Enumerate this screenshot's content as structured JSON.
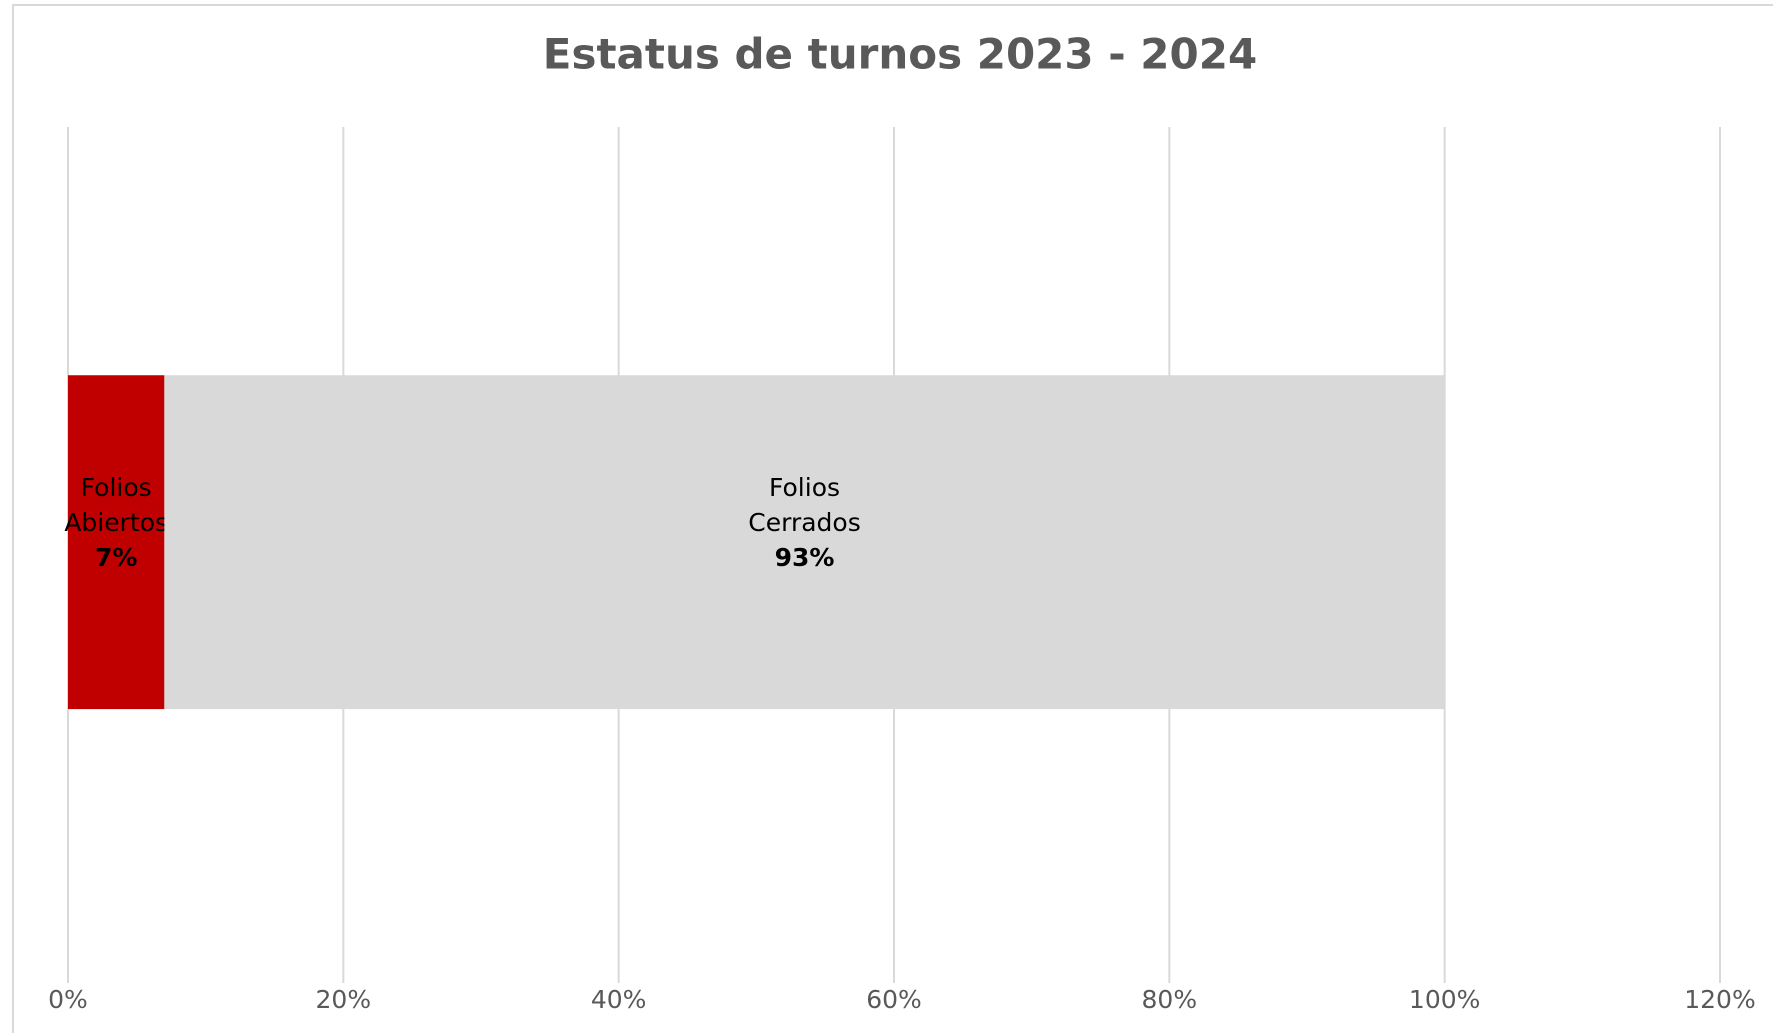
{
  "chart_data": {
    "type": "bar",
    "orientation": "horizontal",
    "stacked": true,
    "title": "Estatus de turnos 2023 - 2024",
    "categories": [
      null
    ],
    "series": [
      {
        "name": "Folios Abiertos",
        "color": "#c00000",
        "values": [
          7
        ],
        "value_labels": [
          "7%"
        ]
      },
      {
        "name": "Folios Cerrados",
        "color": "#d9d9d9",
        "values": [
          93
        ],
        "value_labels": [
          "93%"
        ]
      }
    ],
    "xlim": [
      0,
      120
    ],
    "xticks": [
      {
        "value": 0,
        "label": "0%"
      },
      {
        "value": 20,
        "label": "20%"
      },
      {
        "value": 40,
        "label": "40%"
      },
      {
        "value": 60,
        "label": "60%"
      },
      {
        "value": 80,
        "label": "80%"
      },
      {
        "value": 100,
        "label": "100%"
      },
      {
        "value": 120,
        "label": "120%"
      }
    ],
    "grid": true
  }
}
